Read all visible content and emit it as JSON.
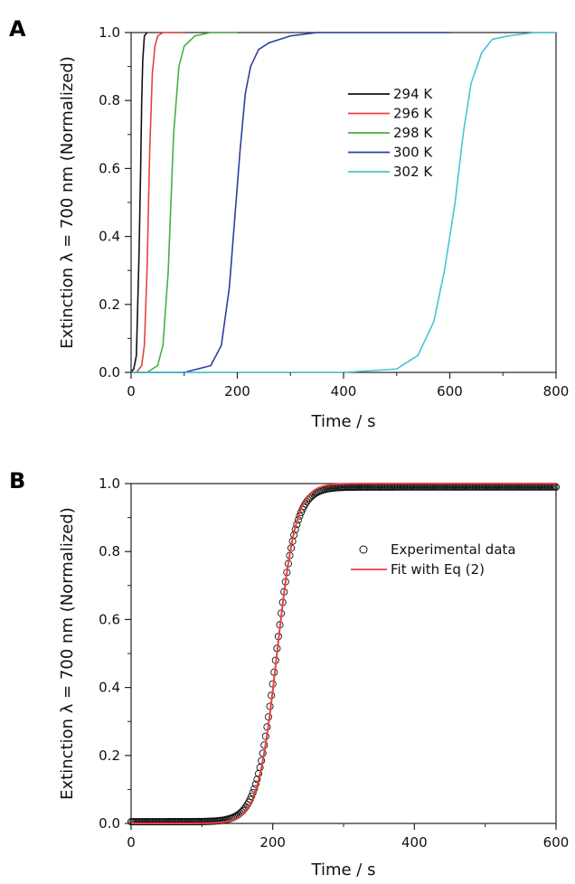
{
  "chart_data": [
    {
      "panel_label": "A",
      "type": "line",
      "xlabel": "Time / s",
      "ylabel": "Extinction λ = 700 nm (Normalized)",
      "xlim": [
        0,
        800
      ],
      "ylim": [
        0,
        1.0
      ],
      "x_ticks": [
        0,
        200,
        400,
        600,
        800
      ],
      "y_ticks": [
        0.0,
        0.2,
        0.4,
        0.6,
        0.8,
        1.0
      ],
      "x_tick_labels": [
        "0",
        "200",
        "400",
        "600",
        "800"
      ],
      "y_tick_labels": [
        "0.0",
        "0.2",
        "0.4",
        "0.6",
        "0.8",
        "1.0"
      ],
      "legend_position": "right-middle",
      "grid": false,
      "series": [
        {
          "name": "294 K",
          "color": "#111111",
          "x_max": 30,
          "x": [
            0,
            5,
            10,
            15,
            18,
            20,
            22,
            25,
            30
          ],
          "y": [
            0.0,
            0.01,
            0.05,
            0.35,
            0.6,
            0.8,
            0.92,
            0.99,
            1.0
          ]
        },
        {
          "name": "296 K",
          "color": "#e8413c",
          "x_max": 100,
          "x": [
            0,
            10,
            20,
            25,
            30,
            35,
            40,
            45,
            50,
            60,
            100
          ],
          "y": [
            0.0,
            0.0,
            0.02,
            0.08,
            0.3,
            0.65,
            0.88,
            0.96,
            0.99,
            1.0,
            1.0
          ]
        },
        {
          "name": "298 K",
          "color": "#4aae44",
          "x_max": 200,
          "x": [
            0,
            30,
            50,
            60,
            70,
            75,
            80,
            90,
            100,
            120,
            150,
            200
          ],
          "y": [
            0.0,
            0.0,
            0.02,
            0.08,
            0.3,
            0.5,
            0.7,
            0.9,
            0.96,
            0.99,
            1.0,
            1.0
          ]
        },
        {
          "name": "300 K",
          "color": "#2e3f9e",
          "x_max": 600,
          "x": [
            0,
            100,
            150,
            170,
            185,
            195,
            205,
            215,
            225,
            240,
            260,
            300,
            350,
            600
          ],
          "y": [
            0.0,
            0.0,
            0.02,
            0.08,
            0.25,
            0.45,
            0.65,
            0.82,
            0.9,
            0.95,
            0.97,
            0.99,
            1.0,
            1.0
          ]
        },
        {
          "name": "302 K",
          "color": "#45c4d4",
          "x_max": 800,
          "x": [
            0,
            400,
            500,
            540,
            570,
            590,
            610,
            625,
            640,
            660,
            680,
            710,
            760,
            800
          ],
          "y": [
            0.0,
            0.0,
            0.01,
            0.05,
            0.15,
            0.3,
            0.5,
            0.7,
            0.85,
            0.94,
            0.98,
            0.99,
            1.0,
            1.0
          ]
        }
      ]
    },
    {
      "panel_label": "B",
      "type": "scatter",
      "xlabel": "Time / s",
      "ylabel": "Extinction λ = 700 nm (Normalized)",
      "xlim": [
        0,
        600
      ],
      "ylim": [
        0,
        1.0
      ],
      "x_ticks": [
        0,
        200,
        400,
        600
      ],
      "y_ticks": [
        0.0,
        0.2,
        0.4,
        0.6,
        0.8,
        1.0
      ],
      "x_tick_labels": [
        "0",
        "200",
        "400",
        "600"
      ],
      "y_tick_labels": [
        "0.0",
        "0.2",
        "0.4",
        "0.6",
        "0.8",
        "1.0"
      ],
      "legend_position": "right-middle",
      "grid": false,
      "series": [
        {
          "name": "Experimental data",
          "marker": "open-circle",
          "color": "#111111",
          "midpoint": 205,
          "width": 14,
          "baseline": 0.005,
          "plateau": 0.99,
          "step": 2
        },
        {
          "name": "Fit with Eq (2)",
          "marker": "line",
          "color": "#e8413c",
          "midpoint": 206,
          "width": 13.5,
          "baseline": 0.0,
          "plateau": 1.0,
          "step": 1
        }
      ]
    }
  ]
}
